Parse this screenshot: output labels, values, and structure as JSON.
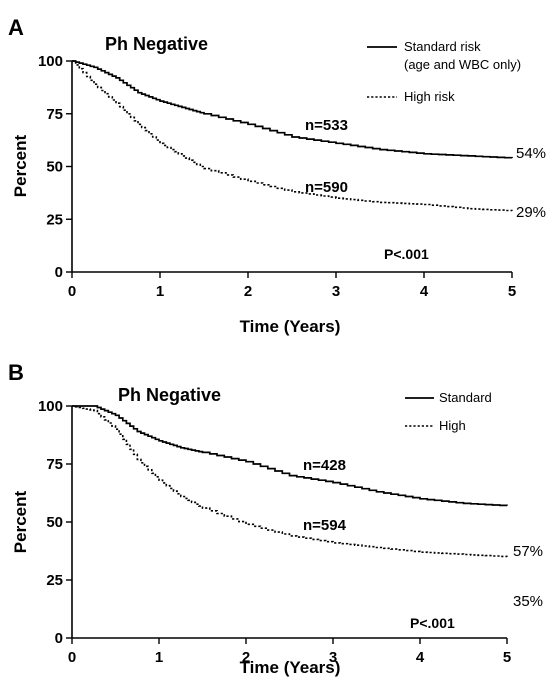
{
  "chart_data": [
    {
      "panel_label": "A",
      "type": "line",
      "title": "Ph Negative",
      "xlabel": "Time (Years)",
      "ylabel": "Percent",
      "xlim": [
        0,
        5
      ],
      "ylim": [
        0,
        100
      ],
      "x_ticks": [
        "0",
        "1",
        "2",
        "3",
        "4",
        "5"
      ],
      "y_ticks": [
        "0",
        "25",
        "50",
        "75",
        "100"
      ],
      "grid": false,
      "legend_position": "top-right",
      "p_value": "P<.001",
      "series": [
        {
          "name": "Standard risk",
          "legend_note": "(age and WBC only)",
          "style": "solid",
          "n_label": "n=533",
          "end_label": "54%",
          "x": [
            0,
            0.25,
            0.5,
            0.75,
            1.0,
            1.25,
            1.5,
            2.0,
            2.5,
            3.0,
            3.5,
            4.0,
            4.5,
            5.0
          ],
          "y": [
            100,
            97,
            92,
            85,
            81,
            78,
            75,
            70,
            64,
            61,
            58,
            56,
            55,
            54
          ]
        },
        {
          "name": "High risk",
          "style": "dotted",
          "n_label": "n=590",
          "end_label": "29%",
          "x": [
            0,
            0.25,
            0.5,
            0.75,
            1.0,
            1.25,
            1.5,
            2.0,
            2.5,
            3.0,
            3.5,
            4.0,
            4.5,
            5.0
          ],
          "y": [
            100,
            89,
            80,
            70,
            61,
            55,
            49,
            43,
            38,
            35,
            33,
            32,
            30,
            29
          ]
        }
      ]
    },
    {
      "panel_label": "B",
      "type": "line",
      "title": "Ph Negative",
      "xlabel": "Time (Years)",
      "ylabel": "Percent",
      "xlim": [
        0,
        5
      ],
      "ylim": [
        0,
        100
      ],
      "x_ticks": [
        "0",
        "1",
        "2",
        "3",
        "4",
        "5"
      ],
      "y_ticks": [
        "0",
        "25",
        "50",
        "75",
        "100"
      ],
      "grid": false,
      "legend_position": "top-right",
      "p_value": "P<.001",
      "series": [
        {
          "name": "Standard",
          "style": "solid",
          "n_label": "n=428",
          "end_label": "57%",
          "x": [
            0,
            0.25,
            0.5,
            0.75,
            1.0,
            1.25,
            1.5,
            2.0,
            2.5,
            3.0,
            3.5,
            4.0,
            4.5,
            5.0
          ],
          "y": [
            100,
            100,
            96,
            89,
            85,
            82,
            80,
            76,
            70,
            67,
            63,
            60,
            58,
            57
          ]
        },
        {
          "name": "High",
          "style": "dotted",
          "n_label": "n=594",
          "end_label": "35%",
          "x": [
            0,
            0.25,
            0.5,
            0.75,
            1.0,
            1.25,
            1.5,
            2.0,
            2.5,
            3.0,
            3.5,
            4.0,
            4.5,
            5.0
          ],
          "y": [
            100,
            98,
            90,
            77,
            68,
            61,
            56,
            49,
            44,
            41,
            39,
            37,
            36,
            35
          ]
        }
      ]
    }
  ]
}
